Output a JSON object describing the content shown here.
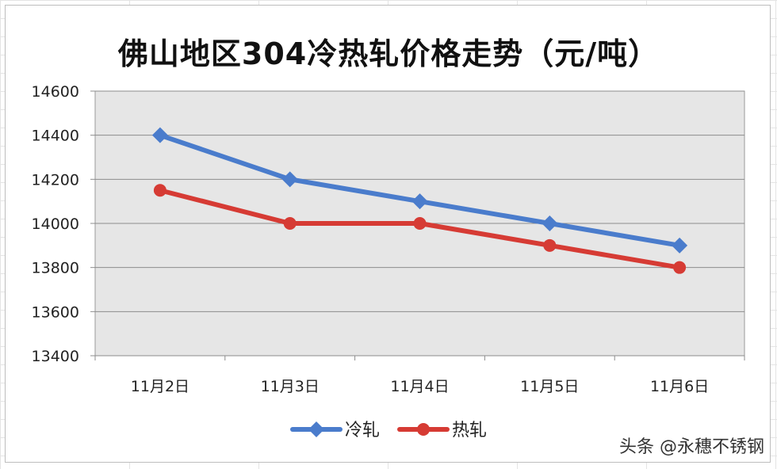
{
  "chart_data": {
    "type": "line",
    "title": "佛山地区304冷热轧价格走势（元/吨）",
    "categories": [
      "11月2日",
      "11月3日",
      "11月4日",
      "11月5日",
      "11月6日"
    ],
    "series": [
      {
        "name": "冷轧",
        "values": [
          14400,
          14200,
          14100,
          14000,
          13900
        ],
        "color": "#4a7ccc",
        "marker": "diamond"
      },
      {
        "name": "热轧",
        "values": [
          14150,
          14000,
          14000,
          13900,
          13800
        ],
        "color": "#d63b34",
        "marker": "circle"
      }
    ],
    "ylim": [
      13400,
      14600
    ],
    "yticks": [
      13400,
      13600,
      13800,
      14000,
      14200,
      14400,
      14600
    ],
    "grid": true,
    "legend_position": "bottom",
    "plot_background": "#e6e6e6"
  },
  "watermark": "头条 @永穗不锈钢"
}
